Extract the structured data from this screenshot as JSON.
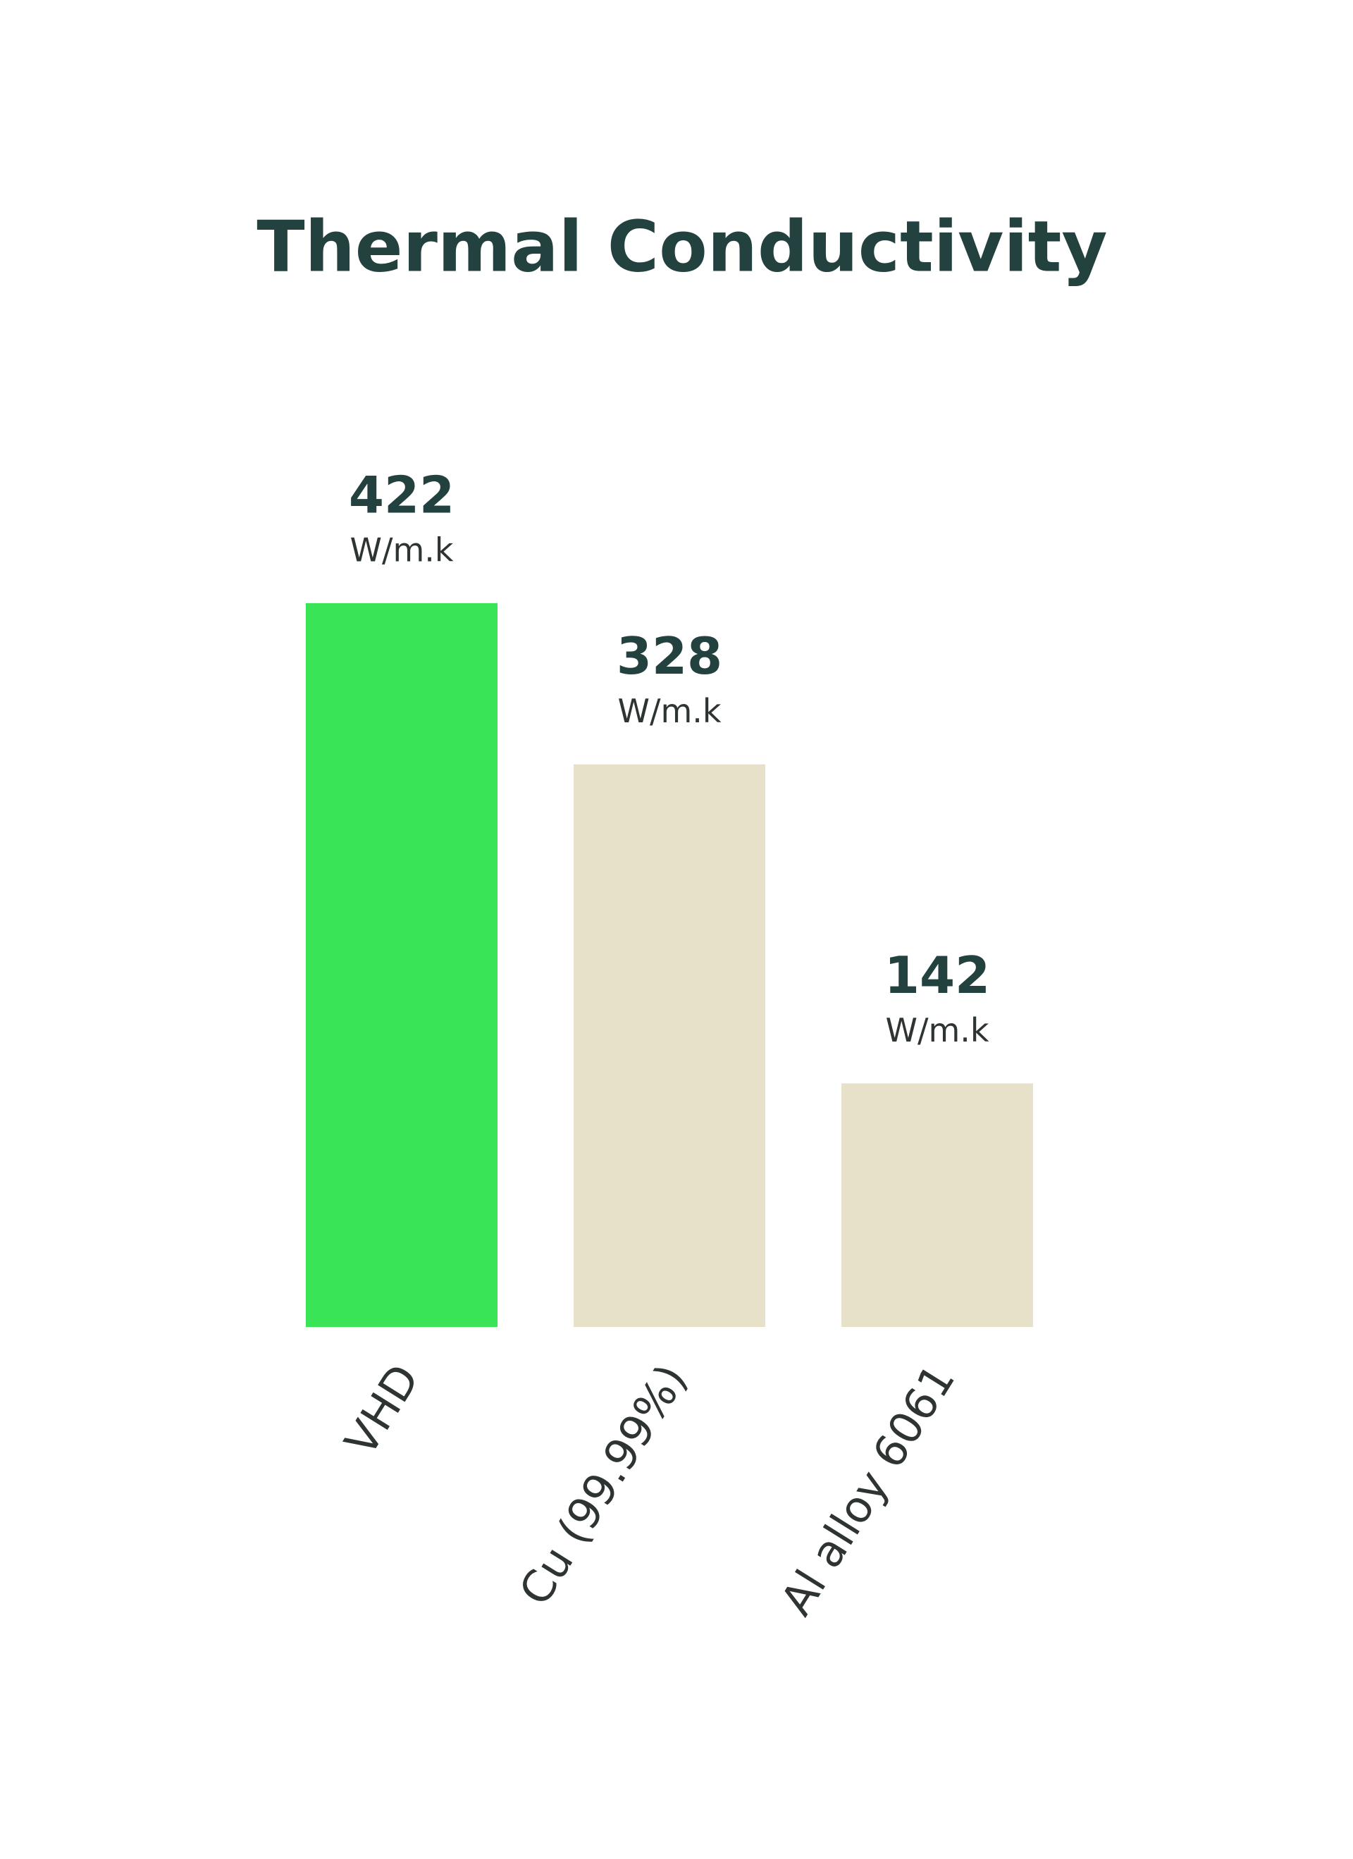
{
  "chart_data": {
    "type": "bar",
    "title": "Thermal Conductivity",
    "categories": [
      "VHD",
      "Cu (99.99%)",
      "Al alloy 6061"
    ],
    "values": [
      422,
      328,
      142
    ],
    "unit": "W/m.k",
    "colors": [
      "#39e556",
      "#e8e1ca",
      "#e8e1ca"
    ]
  }
}
